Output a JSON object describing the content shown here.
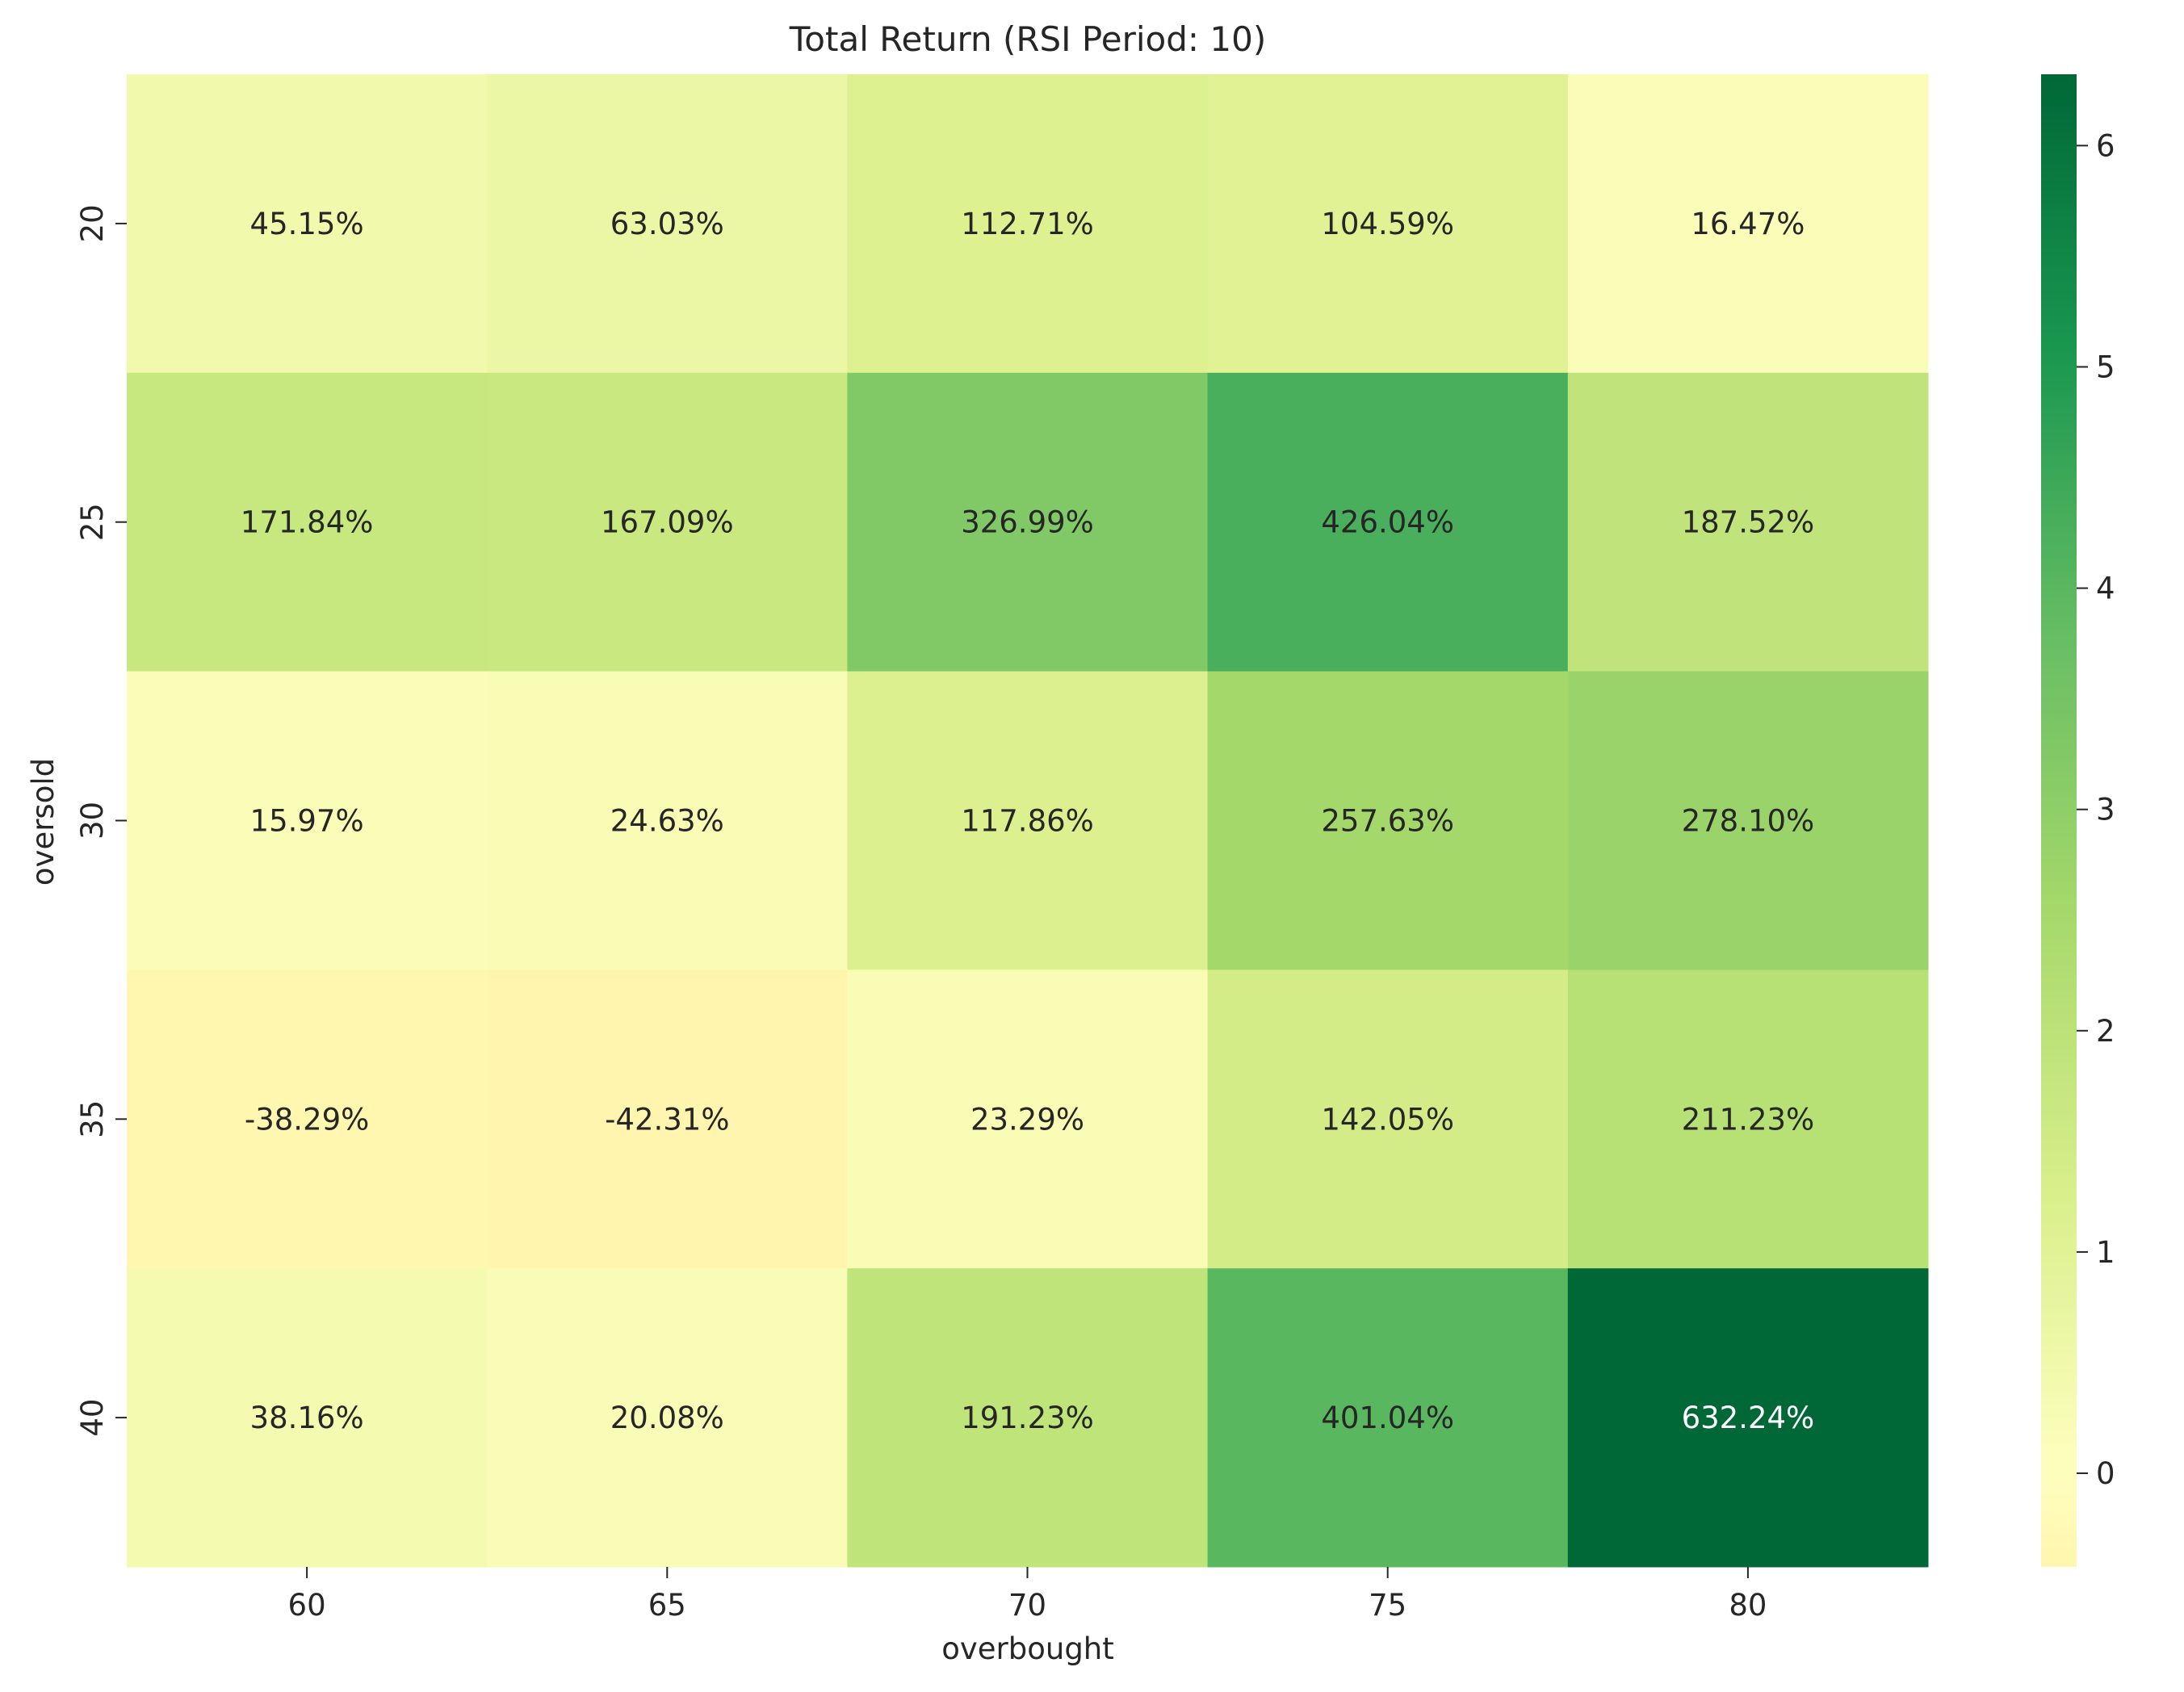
{
  "chart_data": {
    "type": "heatmap",
    "title": "Total Return (RSI Period: 10)",
    "xlabel": "overbought",
    "ylabel": "oversold",
    "x_categories": [
      "60",
      "65",
      "70",
      "75",
      "80"
    ],
    "y_categories": [
      "20",
      "25",
      "30",
      "35",
      "40"
    ],
    "values": [
      [
        0.4515,
        0.6303,
        1.1271,
        1.0459,
        0.1647
      ],
      [
        1.7184,
        1.6709,
        3.2699,
        4.2604,
        1.8752
      ],
      [
        0.1597,
        0.2463,
        1.1786,
        2.5763,
        2.781
      ],
      [
        -0.3829,
        -0.4231,
        0.2329,
        1.4205,
        2.1123
      ],
      [
        0.3816,
        0.2008,
        1.9123,
        4.0104,
        6.3224
      ]
    ],
    "labels": [
      [
        "45.15%",
        "63.03%",
        "112.71%",
        "104.59%",
        "16.47%"
      ],
      [
        "171.84%",
        "167.09%",
        "326.99%",
        "426.04%",
        "187.52%"
      ],
      [
        "15.97%",
        "24.63%",
        "117.86%",
        "257.63%",
        "278.10%"
      ],
      [
        "-38.29%",
        "-42.31%",
        "23.29%",
        "142.05%",
        "211.23%"
      ],
      [
        "38.16%",
        "20.08%",
        "191.23%",
        "401.04%",
        "632.24%"
      ]
    ],
    "colorbar": {
      "vmin": -0.4231,
      "vmax": 6.3224,
      "ticks": [
        "0",
        "1",
        "2",
        "3",
        "4",
        "5",
        "6"
      ],
      "colormap": "RdYlGn (centered at 0)"
    }
  }
}
